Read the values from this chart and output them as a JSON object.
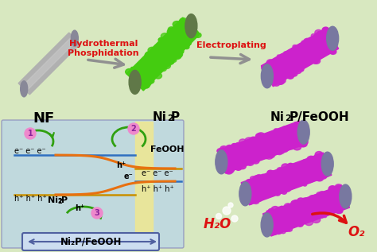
{
  "bg_color": "#d8e8c0",
  "arrow1_label_line1": "Hydrothermal",
  "arrow1_label_line2": "Phosphidation",
  "arrow2_label": "Electroplating",
  "label_NF": "NF",
  "label_Ni2P": "Ni₂P",
  "label_Ni2PFeOOH": "Ni₂P/FeOOH",
  "label_FeOOH": "FeOOH",
  "label_Ni2P_diagram": "Ni₂P",
  "label_Ni2PFeOOH_bottom": "Ni₂P/FeOOH",
  "label_H2O": "H₂O",
  "label_O2": "O₂",
  "left_panel_bg": "#b8d4e8",
  "center_panel_bg": "#f0e890",
  "green_fuzzy_color": "#44cc10",
  "purple_fuzzy_color": "#cc22cc",
  "orange_line_color": "#e87010",
  "green_arrow_color": "#30a010",
  "blue_line_color": "#3070c0",
  "gold_line_color": "#c89000",
  "red_color": "#dd1111",
  "pink_circle_color": "#ee88cc",
  "gray_body": "#b0b0b0",
  "gray_tip": "#888898",
  "green_tip": "#607848",
  "purple_tip": "#7878a0"
}
